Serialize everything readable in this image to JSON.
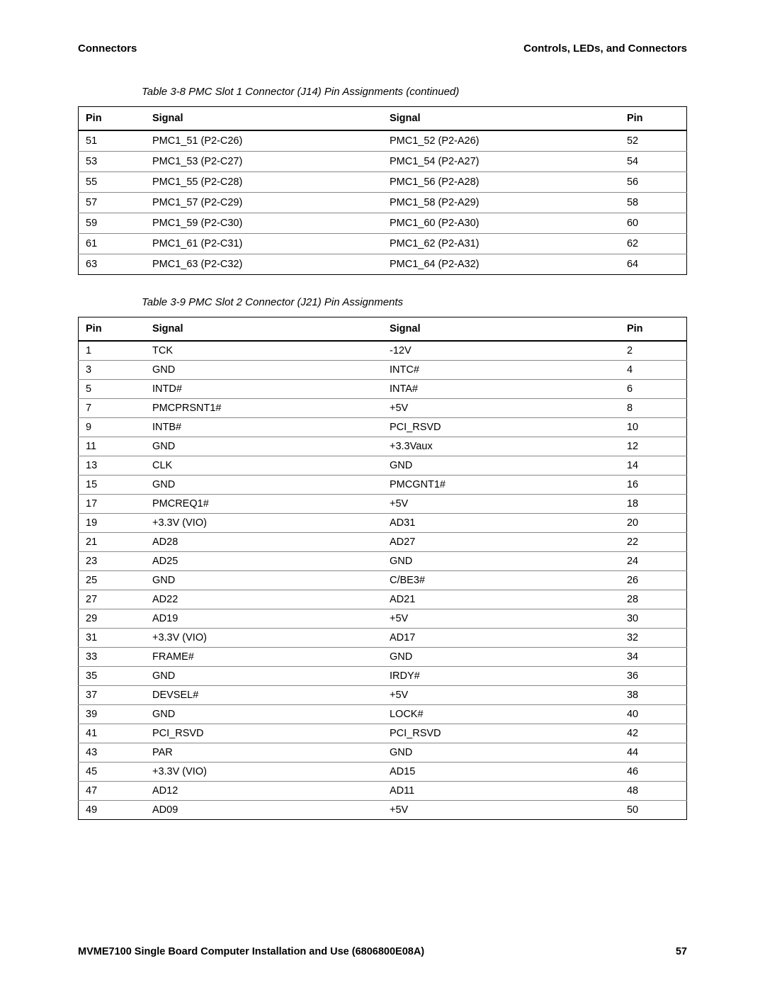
{
  "header": {
    "left": "Connectors",
    "right": "Controls, LEDs, and Connectors"
  },
  "table1": {
    "caption": "Table 3-8 PMC Slot 1 Connector (J14) Pin Assignments (continued)",
    "columns": [
      "Pin",
      "Signal",
      "Signal",
      "Pin"
    ],
    "rows": [
      [
        "51",
        "PMC1_51 (P2-C26)",
        "PMC1_52 (P2-A26)",
        "52"
      ],
      [
        "53",
        "PMC1_53 (P2-C27)",
        "PMC1_54 (P2-A27)",
        "54"
      ],
      [
        "55",
        "PMC1_55 (P2-C28)",
        "PMC1_56 (P2-A28)",
        "56"
      ],
      [
        "57",
        "PMC1_57 (P2-C29)",
        "PMC1_58 (P2-A29)",
        "58"
      ],
      [
        "59",
        "PMC1_59 (P2-C30)",
        "PMC1_60 (P2-A30)",
        "60"
      ],
      [
        "61",
        "PMC1_61 (P2-C31)",
        "PMC1_62 (P2-A31)",
        "62"
      ],
      [
        "63",
        "PMC1_63 (P2-C32)",
        "PMC1_64 (P2-A32)",
        "64"
      ]
    ]
  },
  "table2": {
    "caption": "Table 3-9 PMC Slot 2 Connector (J21) Pin Assignments",
    "columns": [
      "Pin",
      "Signal",
      "Signal",
      "Pin"
    ],
    "rows": [
      [
        "1",
        "TCK",
        "-12V",
        "2"
      ],
      [
        "3",
        "GND",
        "INTC#",
        "4"
      ],
      [
        "5",
        "INTD#",
        "INTA#",
        "6"
      ],
      [
        "7",
        "PMCPRSNT1#",
        "+5V",
        "8"
      ],
      [
        "9",
        "INTB#",
        "PCI_RSVD",
        "10"
      ],
      [
        "11",
        "GND",
        "+3.3Vaux",
        "12"
      ],
      [
        "13",
        "CLK",
        "GND",
        "14"
      ],
      [
        "15",
        "GND",
        "PMCGNT1#",
        "16"
      ],
      [
        "17",
        "PMCREQ1#",
        "+5V",
        "18"
      ],
      [
        "19",
        "+3.3V (VIO)",
        "AD31",
        "20"
      ],
      [
        "21",
        "AD28",
        "AD27",
        "22"
      ],
      [
        "23",
        "AD25",
        "GND",
        "24"
      ],
      [
        "25",
        "GND",
        "C/BE3#",
        "26"
      ],
      [
        "27",
        "AD22",
        "AD21",
        "28"
      ],
      [
        "29",
        "AD19",
        "+5V",
        "30"
      ],
      [
        "31",
        "+3.3V (VIO)",
        "AD17",
        "32"
      ],
      [
        "33",
        "FRAME#",
        "GND",
        "34"
      ],
      [
        "35",
        "GND",
        "IRDY#",
        "36"
      ],
      [
        "37",
        "DEVSEL#",
        "+5V",
        "38"
      ],
      [
        "39",
        "GND",
        "LOCK#",
        "40"
      ],
      [
        "41",
        "PCI_RSVD",
        "PCI_RSVD",
        "42"
      ],
      [
        "43",
        "PAR",
        "GND",
        "44"
      ],
      [
        "45",
        "+3.3V (VIO)",
        "AD15",
        "46"
      ],
      [
        "47",
        "AD12",
        "AD11",
        "48"
      ],
      [
        "49",
        "AD09",
        "+5V",
        "50"
      ]
    ]
  },
  "footer": {
    "title": "MVME7100 Single Board Computer Installation and Use (6806800E08A)",
    "page": "57"
  }
}
